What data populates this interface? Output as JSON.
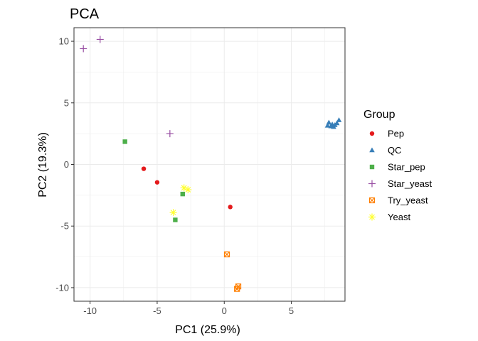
{
  "chart_data": {
    "type": "scatter",
    "title": "PCA",
    "xlabel": "PC1 (25.9%)",
    "ylabel": "PC2 (19.3%)",
    "xlim": [
      -11.2,
      9.0
    ],
    "ylim": [
      -11.1,
      11.1
    ],
    "x_ticks": [
      -10,
      -5,
      0,
      5
    ],
    "y_ticks": [
      -10,
      -5,
      0,
      5,
      10
    ],
    "grid": true,
    "legend_title": "Group",
    "legend_position": "right",
    "series": [
      {
        "name": "Pep",
        "color": "#e41a1c",
        "shape": "circle",
        "points": [
          [
            -6.0,
            -0.35
          ],
          [
            -5.0,
            -1.45
          ],
          [
            0.45,
            -3.45
          ]
        ]
      },
      {
        "name": "QC",
        "color": "#377eb8",
        "shape": "triangle",
        "points": [
          [
            7.7,
            3.15
          ],
          [
            7.8,
            3.4
          ],
          [
            7.95,
            3.1
          ],
          [
            8.05,
            3.25
          ],
          [
            8.15,
            3.05
          ],
          [
            8.25,
            3.2
          ],
          [
            8.4,
            3.35
          ],
          [
            8.55,
            3.6
          ]
        ]
      },
      {
        "name": "Star_pep",
        "color": "#4daf4a",
        "shape": "square",
        "points": [
          [
            -7.4,
            1.85
          ],
          [
            -3.1,
            -2.4
          ],
          [
            -3.65,
            -4.5
          ]
        ]
      },
      {
        "name": "Star_yeast",
        "color": "#984ea3",
        "shape": "plus",
        "points": [
          [
            -10.5,
            9.4
          ],
          [
            -9.25,
            10.15
          ],
          [
            -4.05,
            2.5
          ]
        ]
      },
      {
        "name": "Try_yeast",
        "color": "#ff7f00",
        "shape": "square-cross",
        "points": [
          [
            0.2,
            -7.3
          ],
          [
            0.95,
            -10.1
          ],
          [
            1.05,
            -9.9
          ]
        ]
      },
      {
        "name": "Yeast",
        "color": "#ffff33",
        "shape": "star",
        "points": [
          [
            -3.0,
            -1.9
          ],
          [
            -2.7,
            -2.05
          ],
          [
            -3.8,
            -3.9
          ]
        ]
      }
    ]
  }
}
